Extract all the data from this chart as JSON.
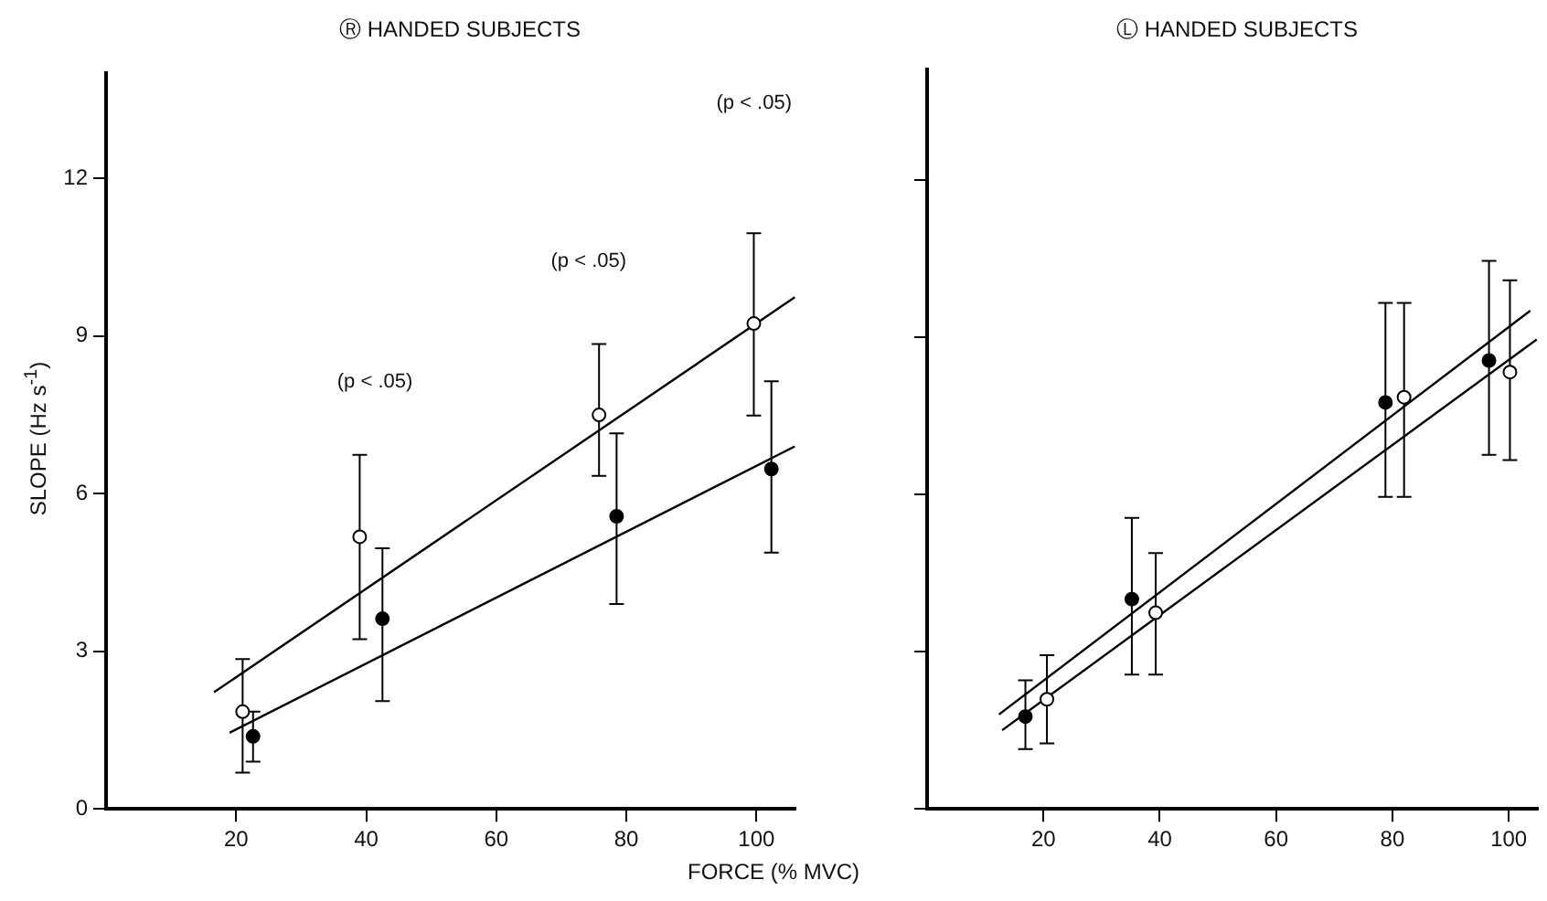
{
  "chart_data": [
    {
      "type": "scatter",
      "title": "Ⓡ HANDED SUBJECTS",
      "xlabel": "FORCE (% MVC)",
      "ylabel": "SLOPE (Hz s$^{-1}$)",
      "xlim": [
        0,
        106
      ],
      "ylim": [
        0,
        14
      ],
      "xticks": [
        20,
        40,
        60,
        80,
        100
      ],
      "yticks": [
        0,
        3,
        6,
        9,
        12
      ],
      "grid": false,
      "legend": false,
      "marker": "circle",
      "series": [
        {
          "color": "#ffffff",
          "x": [
            21,
            39,
            75.8,
            99.6
          ],
          "values": [
            1.85,
            5.18,
            7.5,
            9.24
          ],
          "errors": [
            [
              0.69,
              2.85
            ],
            [
              3.23,
              6.74
            ],
            [
              6.34,
              8.85
            ],
            [
              7.49,
              10.96
            ]
          ]
        },
        {
          "color": "#000000",
          "x": [
            22.6,
            42.5,
            78.5,
            102.3
          ],
          "values": [
            1.38,
            3.62,
            5.57,
            6.47
          ],
          "errors": [
            [
              0.9,
              1.85
            ],
            [
              2.05,
              4.96
            ],
            [
              3.9,
              7.15
            ],
            [
              4.88,
              8.14
            ]
          ]
        },
        {
          "type": "line",
          "marker": "none",
          "color": "#000000",
          "x": [
            16.6,
            105.9
          ],
          "values": [
            2.22,
            9.74
          ]
        },
        {
          "type": "line",
          "marker": "none",
          "color": "#000000",
          "x": [
            19,
            105.9
          ],
          "values": [
            1.45,
            6.9
          ]
        }
      ],
      "annotations": [
        "(p < .05)",
        "(p < .05)",
        "(p < .05)"
      ]
    },
    {
      "type": "scatter",
      "title": "Ⓛ HANDED SUBJECTS",
      "xlim": [
        0,
        105
      ],
      "ylim": [
        0,
        14.1
      ],
      "xticks": [
        20,
        40,
        60,
        80,
        100
      ],
      "yticks": [
        0,
        3,
        6,
        9,
        12
      ],
      "tick_labels": "x",
      "grid": false,
      "legend": false,
      "marker": "circle",
      "series": [
        {
          "color": "#000000",
          "x": [
            16.9,
            35.2,
            78.8,
            96.6
          ],
          "values": [
            1.76,
            4.0,
            7.75,
            8.55
          ],
          "errors": [
            [
              1.14,
              2.45
            ],
            [
              2.56,
              5.55
            ],
            [
              5.95,
              9.65
            ],
            [
              6.75,
              10.45
            ]
          ]
        },
        {
          "color": "#ffffff",
          "x": [
            20.6,
            39.3,
            82,
            100.2
          ],
          "values": [
            2.09,
            3.74,
            7.85,
            8.33
          ],
          "errors": [
            [
              1.25,
              2.93
            ],
            [
              2.56,
              4.88
            ],
            [
              5.95,
              9.65
            ],
            [
              6.65,
              10.08
            ]
          ]
        },
        {
          "type": "line",
          "marker": "none",
          "color": "#000000",
          "x": [
            12.35,
            103.7
          ],
          "values": [
            1.8,
            9.5
          ]
        },
        {
          "type": "line",
          "marker": "none",
          "color": "#000000",
          "x": [
            12.9,
            104.8
          ],
          "values": [
            1.5,
            8.95
          ]
        }
      ]
    }
  ]
}
